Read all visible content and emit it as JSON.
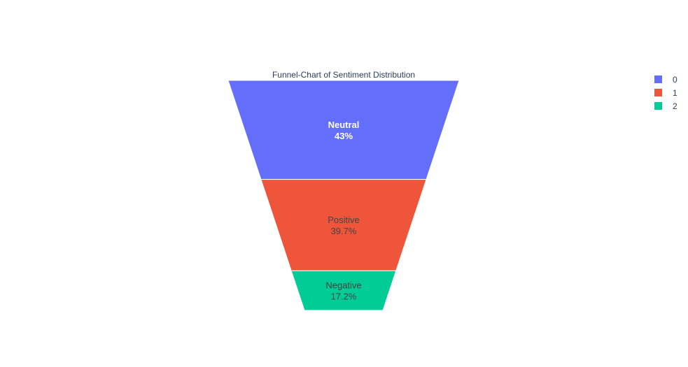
{
  "chart_data": {
    "type": "funnel",
    "title": "Funnel-Chart of Sentiment Distribution",
    "categories": [
      "Neutral",
      "Positive",
      "Negative"
    ],
    "values": [
      43,
      39.7,
      17.2
    ],
    "value_labels": [
      "43%",
      "39.7%",
      "17.2%"
    ],
    "colors": [
      "#636efa",
      "#ef553b",
      "#00cc96"
    ],
    "text_colors": [
      "#ffffff",
      "#444444",
      "#444444"
    ],
    "bold_labels": [
      true,
      false,
      false
    ],
    "legend": {
      "placement": "top-right",
      "entries": [
        "0",
        "1",
        "2"
      ]
    }
  }
}
